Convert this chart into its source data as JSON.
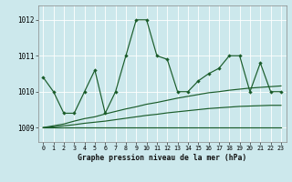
{
  "title": "Graphe pression niveau de la mer (hPa)",
  "bg_color": "#cce8ec",
  "grid_color": "#ffffff",
  "line_color": "#1a5c2a",
  "x_labels": [
    "0",
    "1",
    "2",
    "3",
    "4",
    "5",
    "6",
    "7",
    "8",
    "9",
    "10",
    "11",
    "12",
    "13",
    "14",
    "15",
    "16",
    "17",
    "18",
    "19",
    "20",
    "21",
    "22",
    "23"
  ],
  "y_ticks": [
    1009,
    1010,
    1011,
    1012
  ],
  "ylim": [
    1008.6,
    1012.4
  ],
  "xlim": [
    -0.5,
    23.5
  ],
  "y_main": [
    1010.4,
    1010.0,
    1009.4,
    1009.4,
    1010.0,
    1010.6,
    1009.4,
    1010.0,
    1011.0,
    1012.0,
    1012.0,
    1011.0,
    1010.9,
    1010.0,
    1010.0,
    1010.3,
    1010.5,
    1010.65,
    1011.0,
    1011.0,
    1010.0,
    1010.8,
    1010.0,
    1010.0
  ],
  "y_trend1": [
    1009.0,
    1009.05,
    1009.1,
    1009.18,
    1009.25,
    1009.3,
    1009.38,
    1009.45,
    1009.52,
    1009.58,
    1009.65,
    1009.7,
    1009.76,
    1009.82,
    1009.87,
    1009.92,
    1009.97,
    1010.0,
    1010.04,
    1010.07,
    1010.1,
    1010.12,
    1010.14,
    1010.16
  ],
  "y_trend2": [
    1009.0,
    1009.02,
    1009.05,
    1009.08,
    1009.12,
    1009.15,
    1009.18,
    1009.22,
    1009.26,
    1009.3,
    1009.34,
    1009.37,
    1009.41,
    1009.44,
    1009.47,
    1009.5,
    1009.53,
    1009.55,
    1009.57,
    1009.59,
    1009.6,
    1009.61,
    1009.62,
    1009.62
  ],
  "y_flat": [
    1009.0,
    1009.0,
    1009.0,
    1009.0,
    1009.0,
    1009.0,
    1009.0,
    1009.0,
    1009.0,
    1009.0,
    1009.0,
    1009.0,
    1009.0,
    1009.0,
    1009.0,
    1009.0,
    1009.0,
    1009.0,
    1009.0,
    1009.0,
    1009.0,
    1009.0,
    1009.0,
    1009.0
  ],
  "hours": [
    0,
    1,
    2,
    3,
    4,
    5,
    6,
    7,
    8,
    9,
    10,
    11,
    12,
    13,
    14,
    15,
    16,
    17,
    18,
    19,
    20,
    21,
    22,
    23
  ]
}
